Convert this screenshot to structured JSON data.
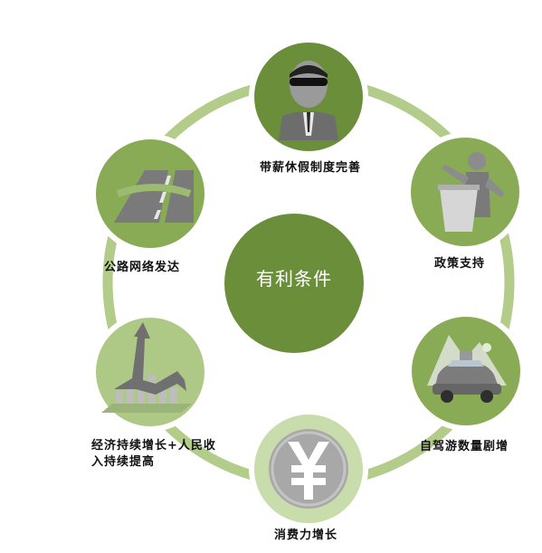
{
  "center": {
    "label": "有利条件"
  },
  "nodes": [
    {
      "id": "paid-leave",
      "label": "带薪休假制度完善",
      "icon": "businessman-sunglasses-icon"
    },
    {
      "id": "policy",
      "label": "政策支持",
      "icon": "speaker-podium-icon"
    },
    {
      "id": "self-drive",
      "label": "自驾游数量剧增",
      "icon": "car-icon"
    },
    {
      "id": "consumption",
      "label": "消费力增长",
      "icon": "yen-coin-icon"
    },
    {
      "id": "economy",
      "label": "经济持续增长+人民收入持续提高",
      "icon": "growth-bar-chart-icon"
    },
    {
      "id": "roads",
      "label": "公路网络发达",
      "icon": "road-icon"
    }
  ],
  "colors": {
    "ring": "#b3cc8a",
    "node_dark": "#6b8e3a",
    "node_mid": "#8aab55",
    "node_light": "#aec985",
    "node_pale": "#c9dcab",
    "center": "#6b8e3a"
  }
}
